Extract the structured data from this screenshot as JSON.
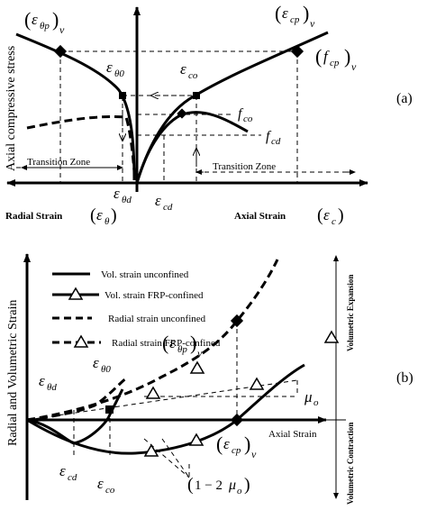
{
  "panel_a": {
    "tag": "(a)",
    "y_axis_title": "Axial compressive stress",
    "eps_theta_p_v": {
      "base": "ε",
      "sub": "θp",
      "post": "v"
    },
    "eps_cp_v": {
      "base": "ε",
      "sub": "cp",
      "post": "v"
    },
    "f_cp_v": {
      "base": "f",
      "sub": "cp",
      "post": "v"
    },
    "eps_theta0": {
      "base": "ε",
      "sub": "θ0"
    },
    "eps_co": {
      "base": "ε",
      "sub": "co"
    },
    "f_co": {
      "base": "f",
      "sub": "co"
    },
    "f_cd": {
      "base": "f",
      "sub": "cd"
    },
    "transition_left": "Transition Zone",
    "transition_right": "Transition Zone",
    "eps_theta_d": {
      "base": "ε",
      "sub": "θd"
    },
    "eps_cd": {
      "base": "ε",
      "sub": "cd"
    },
    "radial_strain": "Radial Strain",
    "axial_strain": "Axial Strain",
    "eps_theta": {
      "base": "ε",
      "sub": "θ"
    },
    "eps_c": {
      "base": "ε",
      "sub": "c"
    }
  },
  "panel_b": {
    "tag": "(b)",
    "y_axis_title": "Radial and Volumetric Strain",
    "legend": [
      "Vol. strain unconfined",
      "Vol. strain FRP-confined",
      "Radial strain unconfined",
      "Radial strain FRP-confined"
    ],
    "vol_expansion": "Volumetric Expansion",
    "vol_contraction": "Volumetric Contraction",
    "eps_theta_d": {
      "base": "ε",
      "sub": "θd"
    },
    "eps_theta0": {
      "base": "ε",
      "sub": "θ0"
    },
    "eps_theta_p_v": {
      "base": "ε",
      "sub": "θp",
      "post": "v"
    },
    "mu_o": {
      "base": "μ",
      "sub": "o"
    },
    "axial_strain": "Axial Strain",
    "eps_cd": {
      "base": "ε",
      "sub": "cd"
    },
    "eps_co": {
      "base": "ε",
      "sub": "co"
    },
    "eps_cp_v": {
      "base": "ε",
      "sub": "cp",
      "post": "v"
    },
    "one_minus_2mu": {
      "pre": "1 − 2",
      "base": "μ",
      "sub": "o"
    }
  }
}
